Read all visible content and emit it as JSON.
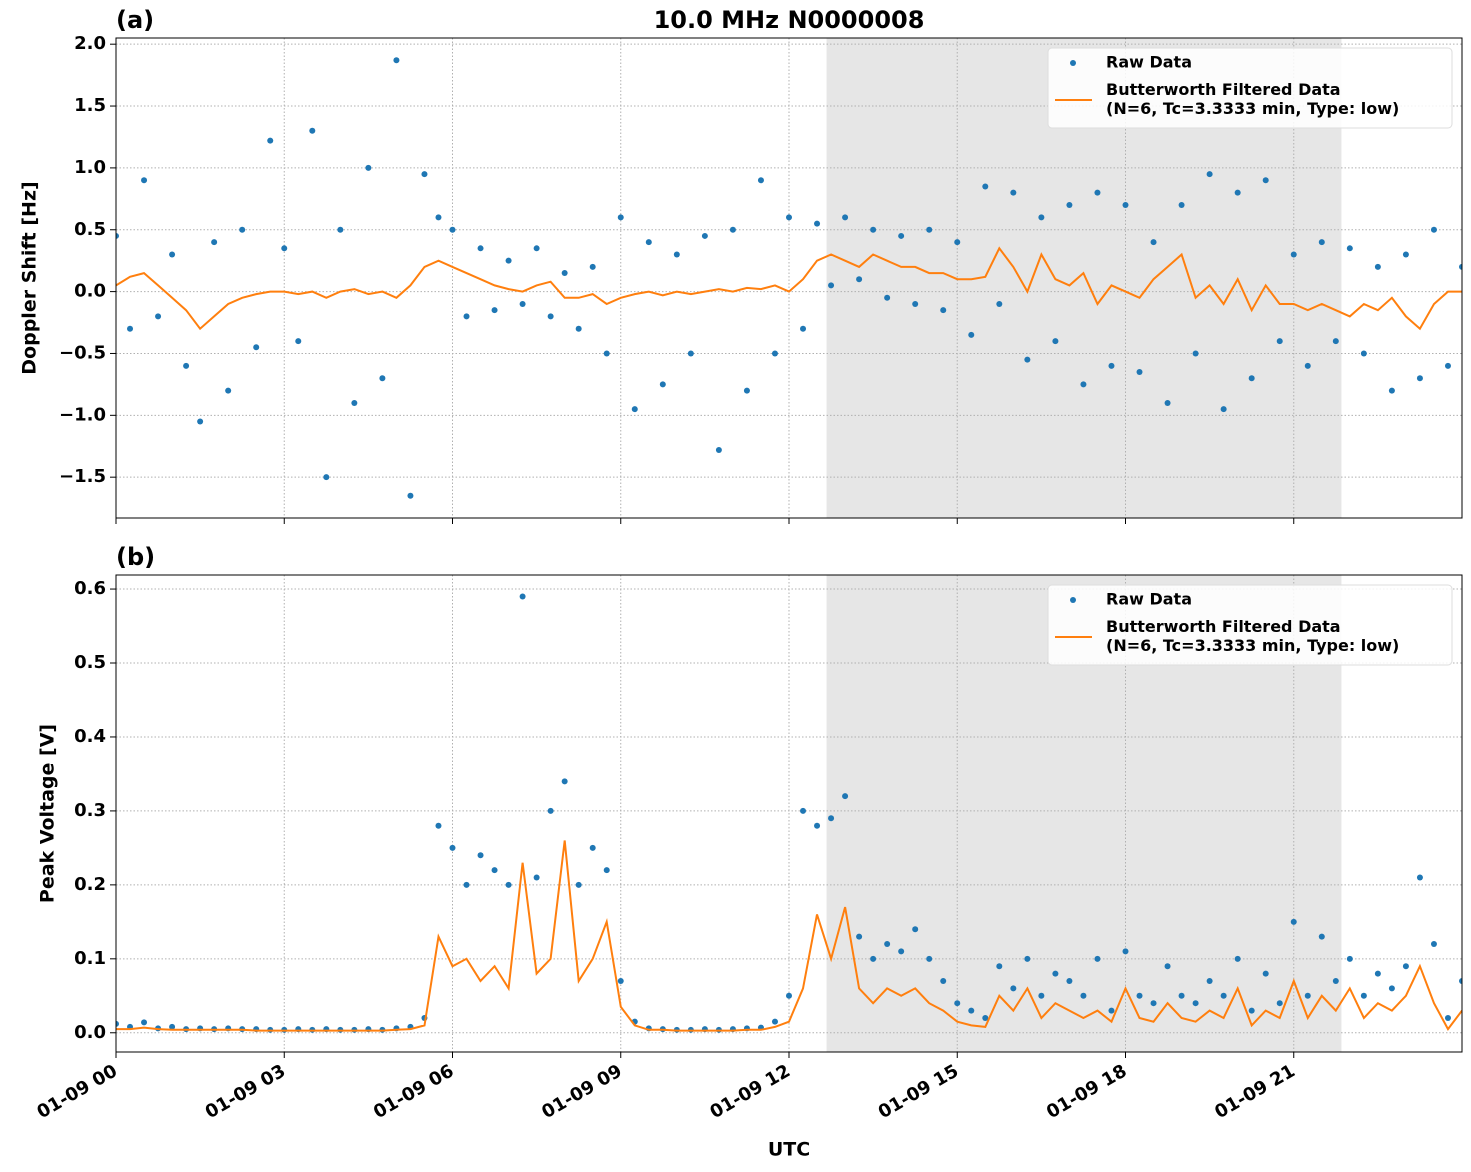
{
  "chart_data": [
    {
      "type": "scatter",
      "title": "10.0 MHz N0000008",
      "label": "(a)",
      "ylabel": "Doppler Shift [Hz]",
      "xlim": [
        0,
        24
      ],
      "xticks": [
        0,
        3,
        6,
        9,
        12,
        15,
        18,
        21
      ],
      "ylim": [
        -1.83,
        2.05
      ],
      "yticks": [
        {
          "value": -1.5,
          "label": "−1.5"
        },
        {
          "value": -1.0,
          "label": "−1.0"
        },
        {
          "value": -0.5,
          "label": "−0.5"
        },
        {
          "value": 0.0,
          "label": "0.0"
        },
        {
          "value": 0.5,
          "label": "0.5"
        },
        {
          "value": 1.0,
          "label": "1.0"
        },
        {
          "value": 1.5,
          "label": "1.5"
        },
        {
          "value": 2.0,
          "label": "2.0"
        }
      ],
      "grid": true,
      "legend": "upper right",
      "span": [
        12.67,
        21.85
      ],
      "span_color": "#e6e6e6",
      "x": [
        0,
        0.25,
        0.5,
        0.75,
        1,
        1.25,
        1.5,
        1.75,
        2,
        2.25,
        2.5,
        2.75,
        3,
        3.25,
        3.5,
        3.75,
        4,
        4.25,
        4.5,
        4.75,
        5,
        5.25,
        5.5,
        5.75,
        6,
        6.25,
        6.5,
        6.75,
        7,
        7.25,
        7.5,
        7.75,
        8,
        8.25,
        8.5,
        8.75,
        9,
        9.25,
        9.5,
        9.75,
        10,
        10.25,
        10.5,
        10.75,
        11,
        11.25,
        11.5,
        11.75,
        12,
        12.25,
        12.5,
        12.75,
        13,
        13.25,
        13.5,
        13.75,
        14,
        14.25,
        14.5,
        14.75,
        15,
        15.25,
        15.5,
        15.75,
        16,
        16.25,
        16.5,
        16.75,
        17,
        17.25,
        17.5,
        17.75,
        18,
        18.25,
        18.5,
        18.75,
        19,
        19.25,
        19.5,
        19.75,
        20,
        20.25,
        20.5,
        20.75,
        21,
        21.25,
        21.5,
        21.75,
        22,
        22.25,
        22.5,
        22.75,
        23,
        23.25,
        23.5,
        23.75,
        24
      ],
      "series": [
        {
          "name": "Raw Data",
          "mode": "markers",
          "color": "#1f77b4",
          "values": [
            0.45,
            -0.3,
            0.9,
            -0.2,
            0.3,
            -0.6,
            -1.05,
            0.4,
            -0.8,
            0.5,
            -0.45,
            1.22,
            0.35,
            -0.4,
            1.3,
            -1.5,
            0.5,
            -0.9,
            1.0,
            -0.7,
            1.87,
            -1.65,
            0.95,
            0.6,
            0.5,
            -0.2,
            0.35,
            -0.15,
            0.25,
            -0.1,
            0.35,
            -0.2,
            0.15,
            -0.3,
            0.2,
            -0.5,
            0.6,
            -0.95,
            0.4,
            -0.75,
            0.3,
            -0.5,
            0.45,
            -1.28,
            0.5,
            -0.8,
            0.9,
            -0.5,
            0.6,
            -0.3,
            0.55,
            0.05,
            0.6,
            0.1,
            0.5,
            -0.05,
            0.45,
            -0.1,
            0.5,
            -0.15,
            0.4,
            -0.35,
            0.85,
            -0.1,
            0.8,
            -0.55,
            0.6,
            -0.4,
            0.7,
            -0.75,
            0.8,
            -0.6,
            0.7,
            -0.65,
            0.4,
            -0.9,
            0.7,
            -0.5,
            0.95,
            -0.95,
            0.8,
            -0.7,
            0.9,
            -0.4,
            0.3,
            -0.6,
            0.4,
            -0.4,
            0.35,
            -0.5,
            0.2,
            -0.8,
            0.3,
            -0.7,
            0.5,
            -0.6,
            0.2
          ]
        },
        {
          "name": "Butterworth Filtered Data\n(N=6, Tc=3.3333 min, Type: low)",
          "mode": "line",
          "color": "#ff7f0e",
          "values": [
            0.05,
            0.12,
            0.15,
            0.05,
            -0.05,
            -0.15,
            -0.3,
            -0.2,
            -0.1,
            -0.05,
            -0.02,
            0.0,
            0.0,
            -0.02,
            0.0,
            -0.05,
            0.0,
            0.02,
            -0.02,
            0.0,
            -0.05,
            0.05,
            0.2,
            0.25,
            0.2,
            0.15,
            0.1,
            0.05,
            0.02,
            0.0,
            0.05,
            0.08,
            -0.05,
            -0.05,
            -0.02,
            -0.1,
            -0.05,
            -0.02,
            0.0,
            -0.03,
            0.0,
            -0.02,
            0.0,
            0.02,
            0.0,
            0.03,
            0.02,
            0.05,
            0.0,
            0.1,
            0.25,
            0.3,
            0.25,
            0.2,
            0.3,
            0.25,
            0.2,
            0.2,
            0.15,
            0.15,
            0.1,
            0.1,
            0.12,
            0.35,
            0.2,
            0.0,
            0.3,
            0.1,
            0.05,
            0.15,
            -0.1,
            0.05,
            0.0,
            -0.05,
            0.1,
            0.2,
            0.3,
            -0.05,
            0.05,
            -0.1,
            0.1,
            -0.15,
            0.05,
            -0.1,
            -0.1,
            -0.15,
            -0.1,
            -0.15,
            -0.2,
            -0.1,
            -0.15,
            -0.05,
            -0.2,
            -0.3,
            -0.1,
            0.0,
            0.0
          ]
        }
      ]
    },
    {
      "type": "scatter",
      "label": "(b)",
      "ylabel": "Peak Voltage [V]",
      "xlabel": "UTC",
      "xlim": [
        0,
        24
      ],
      "xticks": [
        {
          "value": 0,
          "label": "01-09 00"
        },
        {
          "value": 3,
          "label": "01-09 03"
        },
        {
          "value": 6,
          "label": "01-09 06"
        },
        {
          "value": 9,
          "label": "01-09 09"
        },
        {
          "value": 12,
          "label": "01-09 12"
        },
        {
          "value": 15,
          "label": "01-09 15"
        },
        {
          "value": 18,
          "label": "01-09 18"
        },
        {
          "value": 21,
          "label": "01-09 21"
        }
      ],
      "ylim": [
        -0.026,
        0.619
      ],
      "yticks": [
        {
          "value": 0.0,
          "label": "0.0"
        },
        0.1,
        0.2,
        0.3,
        0.4,
        0.5,
        0.6
      ],
      "grid": true,
      "legend": "upper right",
      "span": [
        12.67,
        21.85
      ],
      "span_color": "#e6e6e6",
      "x": [
        0,
        0.25,
        0.5,
        0.75,
        1,
        1.25,
        1.5,
        1.75,
        2,
        2.25,
        2.5,
        2.75,
        3,
        3.25,
        3.5,
        3.75,
        4,
        4.25,
        4.5,
        4.75,
        5,
        5.25,
        5.5,
        5.75,
        6,
        6.25,
        6.5,
        6.75,
        7,
        7.25,
        7.5,
        7.75,
        8,
        8.25,
        8.5,
        8.75,
        9,
        9.25,
        9.5,
        9.75,
        10,
        10.25,
        10.5,
        10.75,
        11,
        11.25,
        11.5,
        11.75,
        12,
        12.25,
        12.5,
        12.75,
        13,
        13.25,
        13.5,
        13.75,
        14,
        14.25,
        14.5,
        14.75,
        15,
        15.25,
        15.5,
        15.75,
        16,
        16.25,
        16.5,
        16.75,
        17,
        17.25,
        17.5,
        17.75,
        18,
        18.25,
        18.5,
        18.75,
        19,
        19.25,
        19.5,
        19.75,
        20,
        20.25,
        20.5,
        20.75,
        21,
        21.25,
        21.5,
        21.75,
        22,
        22.25,
        22.5,
        22.75,
        23,
        23.25,
        23.5,
        23.75,
        24
      ],
      "series": [
        {
          "name": "Raw Data",
          "mode": "markers",
          "color": "#1f77b4",
          "values": [
            0.012,
            0.008,
            0.014,
            0.006,
            0.008,
            0.005,
            0.006,
            0.005,
            0.006,
            0.005,
            0.005,
            0.004,
            0.004,
            0.005,
            0.004,
            0.005,
            0.004,
            0.004,
            0.005,
            0.004,
            0.006,
            0.008,
            0.02,
            0.28,
            0.25,
            0.2,
            0.24,
            0.22,
            0.2,
            0.59,
            0.21,
            0.3,
            0.34,
            0.2,
            0.25,
            0.22,
            0.07,
            0.015,
            0.006,
            0.005,
            0.004,
            0.004,
            0.005,
            0.004,
            0.005,
            0.006,
            0.007,
            0.015,
            0.05,
            0.3,
            0.28,
            0.29,
            0.32,
            0.13,
            0.1,
            0.12,
            0.11,
            0.14,
            0.1,
            0.07,
            0.04,
            0.03,
            0.02,
            0.09,
            0.06,
            0.1,
            0.05,
            0.08,
            0.07,
            0.05,
            0.1,
            0.03,
            0.11,
            0.05,
            0.04,
            0.09,
            0.05,
            0.04,
            0.07,
            0.05,
            0.1,
            0.03,
            0.08,
            0.04,
            0.15,
            0.05,
            0.13,
            0.07,
            0.1,
            0.05,
            0.08,
            0.06,
            0.09,
            0.21,
            0.12,
            0.02,
            0.07
          ]
        },
        {
          "name": "Butterworth Filtered Data\n(N=6, Tc=3.3333 min, Type: low)",
          "mode": "line",
          "color": "#ff7f0e",
          "values": [
            0.005,
            0.005,
            0.007,
            0.005,
            0.004,
            0.004,
            0.004,
            0.004,
            0.004,
            0.004,
            0.003,
            0.003,
            0.003,
            0.003,
            0.003,
            0.003,
            0.003,
            0.003,
            0.003,
            0.003,
            0.004,
            0.005,
            0.01,
            0.13,
            0.09,
            0.1,
            0.07,
            0.09,
            0.06,
            0.23,
            0.08,
            0.1,
            0.26,
            0.07,
            0.1,
            0.15,
            0.035,
            0.01,
            0.004,
            0.004,
            0.003,
            0.003,
            0.003,
            0.003,
            0.003,
            0.004,
            0.004,
            0.008,
            0.015,
            0.06,
            0.16,
            0.1,
            0.17,
            0.06,
            0.04,
            0.06,
            0.05,
            0.06,
            0.04,
            0.03,
            0.015,
            0.01,
            0.008,
            0.05,
            0.03,
            0.06,
            0.02,
            0.04,
            0.03,
            0.02,
            0.03,
            0.015,
            0.06,
            0.02,
            0.015,
            0.04,
            0.02,
            0.015,
            0.03,
            0.02,
            0.06,
            0.01,
            0.03,
            0.02,
            0.07,
            0.02,
            0.05,
            0.03,
            0.06,
            0.02,
            0.04,
            0.03,
            0.05,
            0.09,
            0.04,
            0.005,
            0.03
          ]
        }
      ]
    }
  ]
}
